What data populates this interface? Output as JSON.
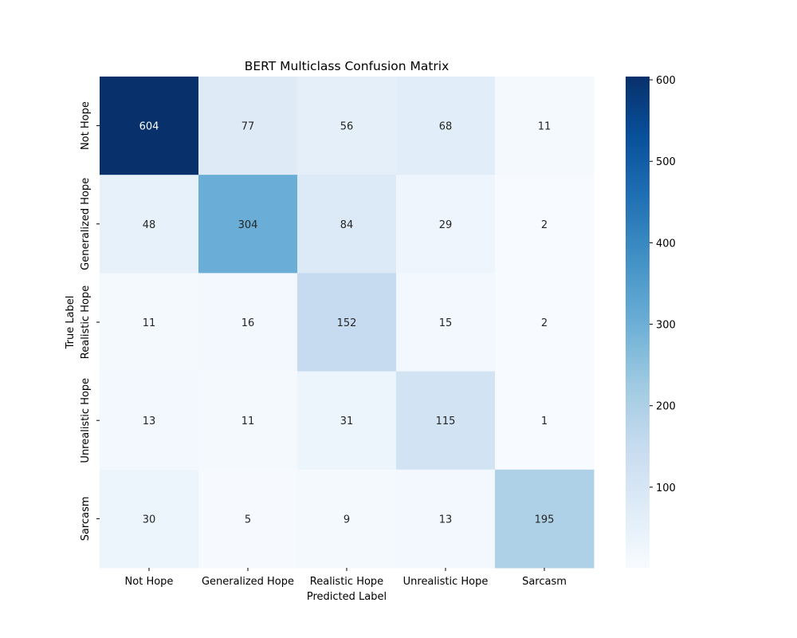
{
  "chart_data": {
    "type": "heatmap",
    "title": "BERT Multiclass Confusion Matrix",
    "xlabel": "Predicted Label",
    "ylabel": "True Label",
    "x_categories": [
      "Not Hope",
      "Generalized Hope",
      "Realistic Hope",
      "Unrealistic Hope",
      "Sarcasm"
    ],
    "y_categories": [
      "Not Hope",
      "Generalized Hope",
      "Realistic Hope",
      "Unrealistic Hope",
      "Sarcasm"
    ],
    "values": [
      [
        604,
        77,
        56,
        68,
        11
      ],
      [
        48,
        304,
        84,
        29,
        2
      ],
      [
        11,
        16,
        152,
        15,
        2
      ],
      [
        13,
        11,
        31,
        115,
        1
      ],
      [
        30,
        5,
        9,
        13,
        195
      ]
    ],
    "colormap": "Blues",
    "colorbar": {
      "min": 1,
      "max": 604,
      "ticks": [
        "100",
        "200",
        "300",
        "400",
        "500",
        "600"
      ]
    }
  }
}
